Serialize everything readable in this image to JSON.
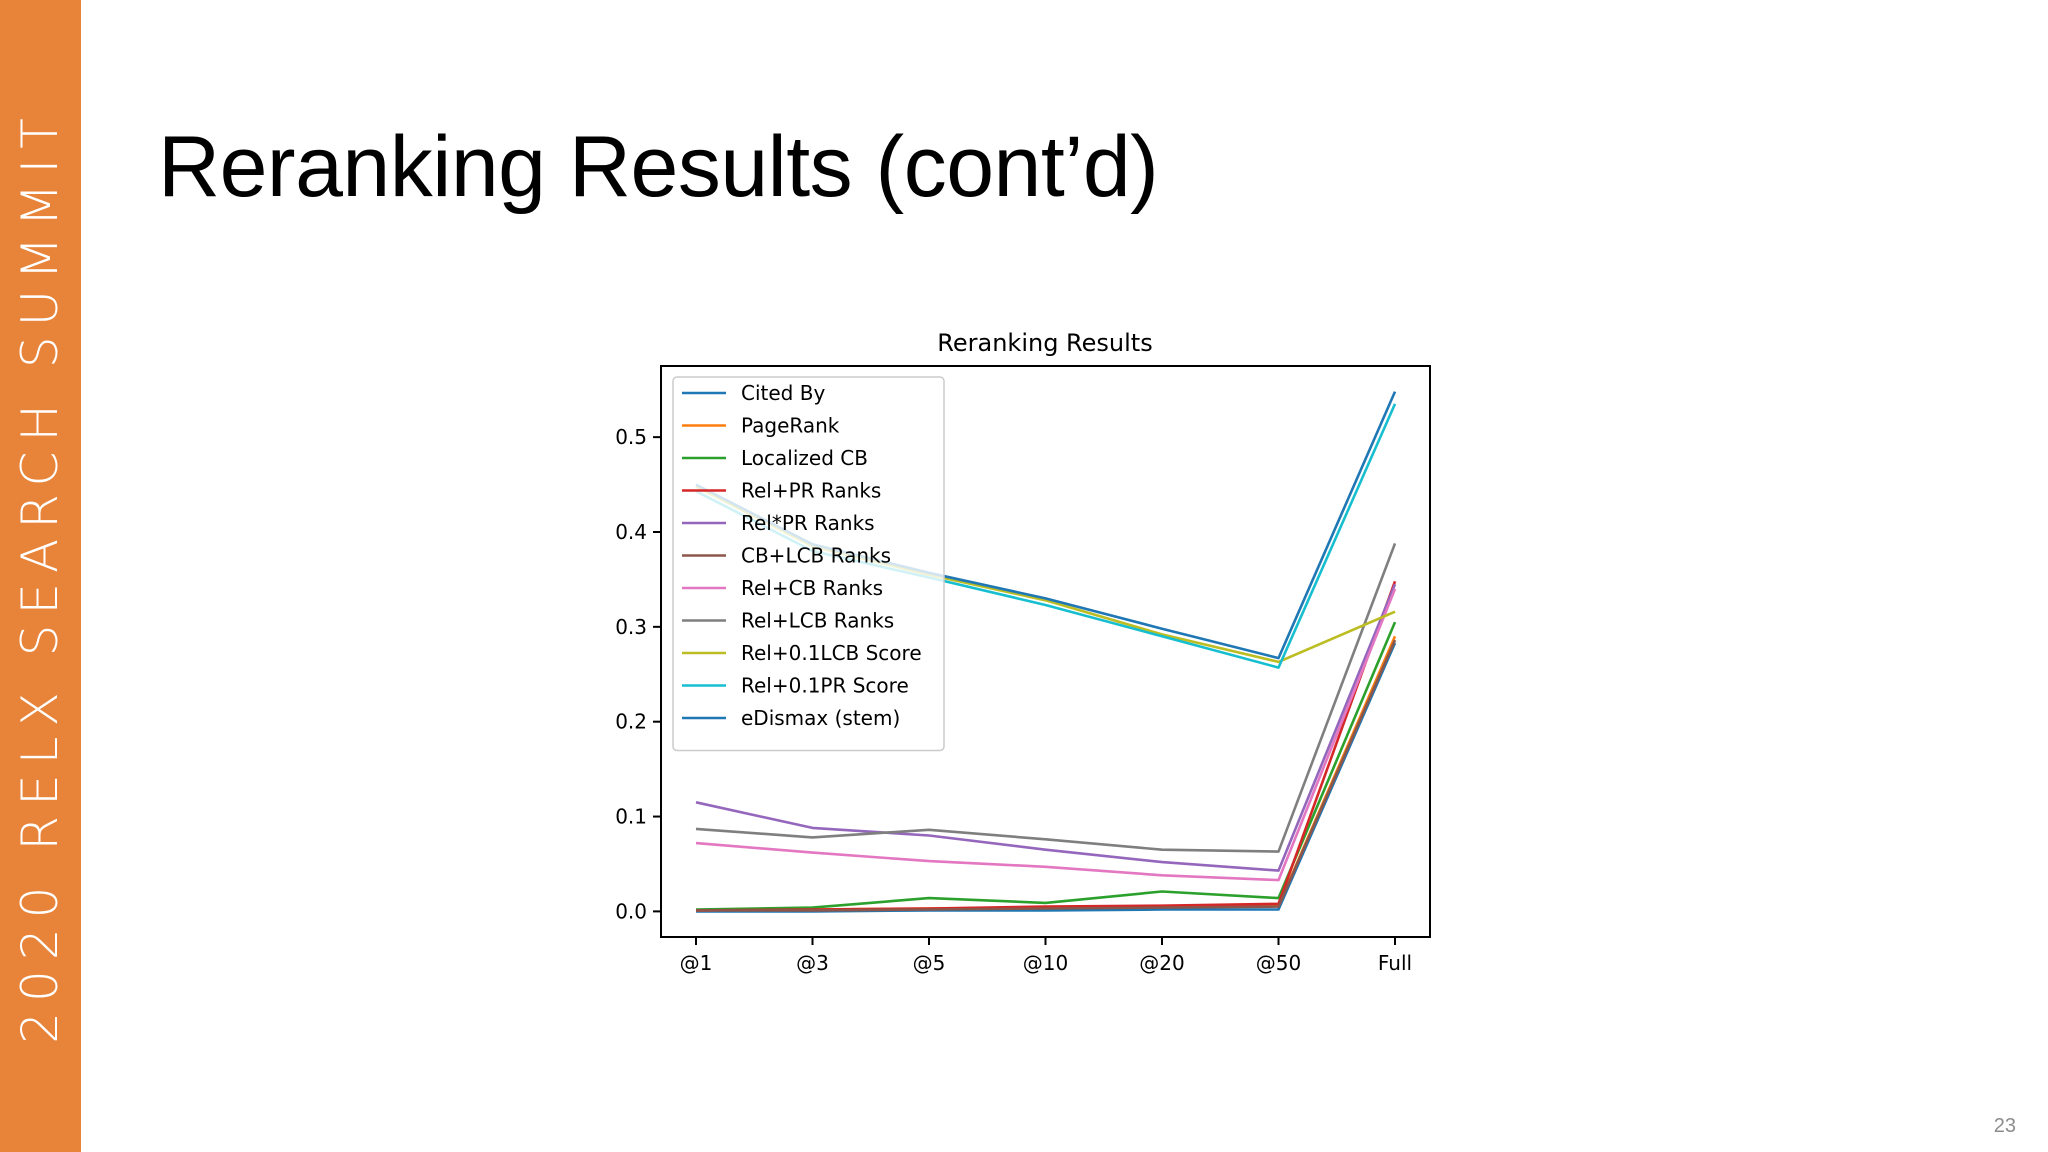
{
  "slide": {
    "side_banner": "2020 RELX SEARCH SUMMIT",
    "title": "Reranking Results (cont’d)",
    "page_number": "23",
    "accent_color": "#E8833A"
  },
  "chart_data": {
    "type": "line",
    "title": "Reranking Results",
    "xlabel": "",
    "ylabel": "",
    "categories": [
      "@1",
      "@3",
      "@5",
      "@10",
      "@20",
      "@50",
      "Full"
    ],
    "ylim": [
      -0.027,
      0.575
    ],
    "yticks": [
      0.0,
      0.1,
      0.2,
      0.3,
      0.4,
      0.5
    ],
    "ytick_labels": [
      "0.0",
      "0.1",
      "0.2",
      "0.3",
      "0.4",
      "0.5"
    ],
    "grid": false,
    "legend": "upper-left",
    "series": [
      {
        "name": "Cited By",
        "color": "#1f77b4",
        "values": [
          0.0,
          0.0,
          0.001,
          0.001,
          0.002,
          0.002,
          0.283
        ]
      },
      {
        "name": "PageRank",
        "color": "#ff7f0e",
        "values": [
          0.001,
          0.002,
          0.003,
          0.004,
          0.005,
          0.006,
          0.29
        ]
      },
      {
        "name": "Localized CB",
        "color": "#2ca02c",
        "values": [
          0.002,
          0.004,
          0.014,
          0.009,
          0.021,
          0.014,
          0.305
        ]
      },
      {
        "name": "Rel+PR Ranks",
        "color": "#d62728",
        "values": [
          0.001,
          0.002,
          0.003,
          0.005,
          0.006,
          0.008,
          0.348
        ]
      },
      {
        "name": "Rel*PR Ranks",
        "color": "#9467bd",
        "values": [
          0.115,
          0.088,
          0.08,
          0.065,
          0.052,
          0.043,
          0.345
        ]
      },
      {
        "name": "CB+LCB Ranks",
        "color": "#8c564b",
        "values": [
          0.001,
          0.001,
          0.002,
          0.003,
          0.004,
          0.005,
          0.286
        ]
      },
      {
        "name": "Rel+CB Ranks",
        "color": "#e377c2",
        "values": [
          0.072,
          0.062,
          0.053,
          0.047,
          0.038,
          0.033,
          0.34
        ]
      },
      {
        "name": "Rel+LCB Ranks",
        "color": "#7f7f7f",
        "values": [
          0.087,
          0.078,
          0.086,
          0.076,
          0.065,
          0.063,
          0.388
        ]
      },
      {
        "name": "Rel+0.1LCB Score",
        "color": "#bcbd22",
        "values": [
          0.448,
          0.385,
          0.355,
          0.328,
          0.292,
          0.263,
          0.316
        ]
      },
      {
        "name": "Rel+0.1PR Score",
        "color": "#17becf",
        "values": [
          0.443,
          0.38,
          0.352,
          0.323,
          0.29,
          0.257,
          0.535
        ]
      },
      {
        "name": "eDismax (stem)",
        "color": "#1f77b4",
        "values": [
          0.45,
          0.387,
          0.357,
          0.33,
          0.298,
          0.267,
          0.548
        ]
      }
    ]
  }
}
